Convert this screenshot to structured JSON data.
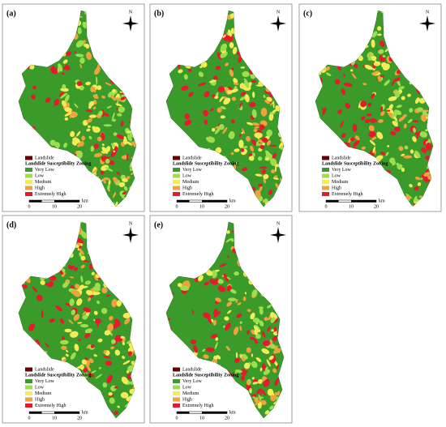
{
  "panels": [
    {
      "label": "(a)",
      "north": "N",
      "legend": {
        "landslide": {
          "name": "Landslide",
          "color": "#6b0000"
        },
        "title": "Landslide Susceptibility Zoning",
        "items": [
          {
            "name": "Very Low",
            "color": "#3a9a2a"
          },
          {
            "name": "Low",
            "color": "#9be04a"
          },
          {
            "name": "Medium",
            "color": "#f5ec55"
          },
          {
            "name": "High",
            "color": "#f2a23a"
          },
          {
            "name": "Extremely High",
            "color": "#e8192c"
          }
        ]
      },
      "scale": {
        "ticks": [
          "0",
          "10",
          "20"
        ],
        "unit": "km"
      }
    },
    {
      "label": "(b)",
      "north": "N",
      "legend": {
        "landslide": {
          "name": "Landslide",
          "color": "#6b0000"
        },
        "title": "Landslide Susceptibility Zoning",
        "items": [
          {
            "name": "Very Low",
            "color": "#3a9a2a"
          },
          {
            "name": "Low",
            "color": "#9be04a"
          },
          {
            "name": "Medium",
            "color": "#f5ec55"
          },
          {
            "name": "High",
            "color": "#f2a23a"
          },
          {
            "name": "Extremely High",
            "color": "#e8192c"
          }
        ]
      },
      "scale": {
        "ticks": [
          "0",
          "10",
          "20"
        ],
        "unit": "km"
      }
    },
    {
      "label": "(c)",
      "north": "N",
      "legend": {
        "landslide": {
          "name": "Landslide",
          "color": "#6b0000"
        },
        "title": "Landslide Susceptibility Zoning",
        "items": [
          {
            "name": "Very Low",
            "color": "#3a9a2a"
          },
          {
            "name": "Low",
            "color": "#9be04a"
          },
          {
            "name": "Medium",
            "color": "#f5ec55"
          },
          {
            "name": "High",
            "color": "#f2a23a"
          },
          {
            "name": "Extremely High",
            "color": "#e8192c"
          }
        ]
      },
      "scale": {
        "ticks": [
          "0",
          "10",
          "20"
        ],
        "unit": "km"
      }
    },
    {
      "label": "(d)",
      "north": "N",
      "legend": {
        "landslide": {
          "name": "Landslide",
          "color": "#6b0000"
        },
        "title": "Landslide Susceptibility Zoning",
        "items": [
          {
            "name": "Very Low",
            "color": "#3a9a2a"
          },
          {
            "name": "Low",
            "color": "#9be04a"
          },
          {
            "name": "Medium",
            "color": "#f5ec55"
          },
          {
            "name": "High",
            "color": "#f2a23a"
          },
          {
            "name": "Extremely High",
            "color": "#e8192c"
          }
        ]
      },
      "scale": {
        "ticks": [
          "0",
          "10",
          "20"
        ],
        "unit": "km"
      }
    },
    {
      "label": "(e)",
      "north": "N",
      "legend": {
        "landslide": {
          "name": "Landslide",
          "color": "#6b0000"
        },
        "title": "Landslide Susceptibility Zoning",
        "items": [
          {
            "name": "Very Low",
            "color": "#3a9a2a"
          },
          {
            "name": "Low",
            "color": "#9be04a"
          },
          {
            "name": "Medium",
            "color": "#f5ec55"
          },
          {
            "name": "High",
            "color": "#f2a23a"
          },
          {
            "name": "Extremely High",
            "color": "#e8192c"
          }
        ]
      },
      "scale": {
        "ticks": [
          "0",
          "10",
          "20"
        ],
        "unit": "km"
      }
    }
  ]
}
